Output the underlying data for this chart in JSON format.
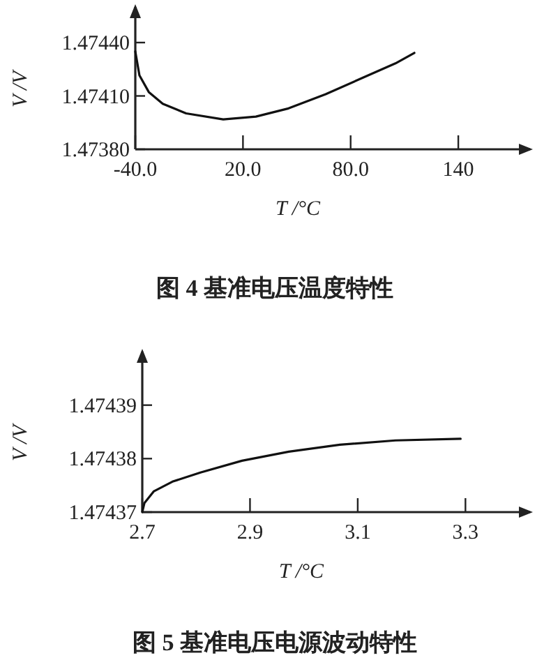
{
  "chart_data": [
    {
      "type": "line",
      "title": "图 4   基准电压温度特性",
      "xlabel": "T /°C",
      "ylabel": "V /V",
      "x": [
        -40,
        -37.7,
        -32.5,
        -24.7,
        -11.7,
        9,
        27.2,
        45.4,
        66.1,
        86.9,
        105,
        115.5
      ],
      "values": [
        1.47435,
        1.474216,
        1.474122,
        1.474056,
        1.474002,
        1.473968,
        1.473984,
        1.47403,
        1.47411,
        1.474203,
        1.474283,
        1.474342
      ],
      "color": "#111111",
      "xlim": [
        -40,
        180
      ],
      "ylim": [
        1.4738,
        1.4746
      ],
      "xticks": [
        {
          "value": -40,
          "label": "-40.0"
        },
        {
          "value": 20,
          "label": "20.0"
        },
        {
          "value": 80,
          "label": "80.0"
        },
        140
      ],
      "yticks": [
        {
          "value": 1.4738,
          "label": "1.47380"
        },
        {
          "value": 1.4741,
          "label": "1.47410"
        },
        {
          "value": 1.4744,
          "label": "1.47440"
        }
      ],
      "grid": false,
      "marker": "none",
      "line_style": "solid"
    },
    {
      "type": "line",
      "title": "图 5   基准电压电源波动特性",
      "xlabel": "T /°C",
      "ylabel": "V /V",
      "x": [
        2.7,
        2.704,
        2.7216,
        2.756,
        2.808,
        2.885,
        2.972,
        3.067,
        3.17,
        3.291
      ],
      "values": [
        1.47437,
        1.4743717,
        1.4743739,
        1.4743757,
        1.4743774,
        1.4743796,
        1.4743813,
        1.4743826,
        1.4743834,
        1.4743837
      ],
      "color": "#111111",
      "xlim": [
        2.7,
        3.42
      ],
      "ylim": [
        1.47437,
        1.4744
      ],
      "xticks": [
        2.7,
        2.9,
        3.1,
        3.3
      ],
      "yticks": [
        {
          "value": 1.47437,
          "label": "1.47437"
        },
        {
          "value": 1.47438,
          "label": "1.47438"
        },
        {
          "value": 1.47439,
          "label": "1.47439"
        }
      ],
      "grid": false,
      "marker": "none",
      "line_style": "solid"
    }
  ]
}
